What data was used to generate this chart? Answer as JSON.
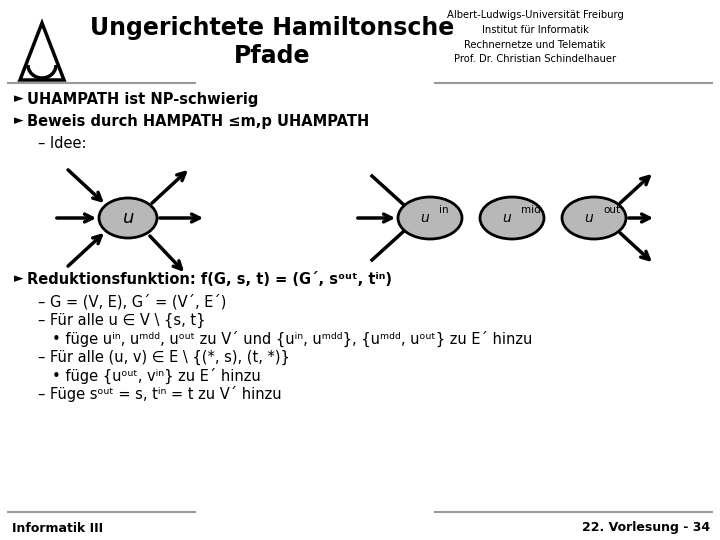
{
  "title_line1": "Ungerichtete Hamiltonsche",
  "title_line2": "Pfade",
  "university": "Albert-Ludwigs-Universität Freiburg\nInstitut für Informatik\nRechnernetze und Telematik\nProf. Dr. Christian Schindelhauer",
  "footer_left": "Informatik III",
  "footer_right": "22. Vorlesung - 34",
  "bg": "#ffffff",
  "gray": "#999999",
  "node_fill": "#b8b8b8",
  "black": "#000000",
  "bullet1": "UHAMPATH ist NP-schwierig",
  "bullet2": "Beweis durch HAMPATH ≤m,p UHAMPATH",
  "sub_idee": "– Idee:",
  "rfunc": "Reduktionsfunktion: f(G, s, t) = (G´, sᵒᵘᵗ, tⁱⁿ)",
  "sub_g": "– G = (V, E), G´ = (V´, E´)",
  "sub_u1": "– Für alle u ∈ V \\ {s, t}",
  "sub_u1b": "• füge uⁱⁿ, uᵐᵈᵈ, uᵒᵘᵗ zu V´ und {uⁱⁿ, uᵐᵈᵈ}, {uᵐᵈᵈ, uᵒᵘᵗ} zu E´ hinzu",
  "sub_v1": "– Für alle (u, v) ∈ E \\ {(*, s), (t, *)}",
  "sub_v1b": "• füge {uᵒᵘᵗ, vⁱⁿ} zu E´ hinzu",
  "sub_fuge": "– Füge sᵒᵘᵗ = s, tⁱⁿ = t zu V´ hinzu"
}
